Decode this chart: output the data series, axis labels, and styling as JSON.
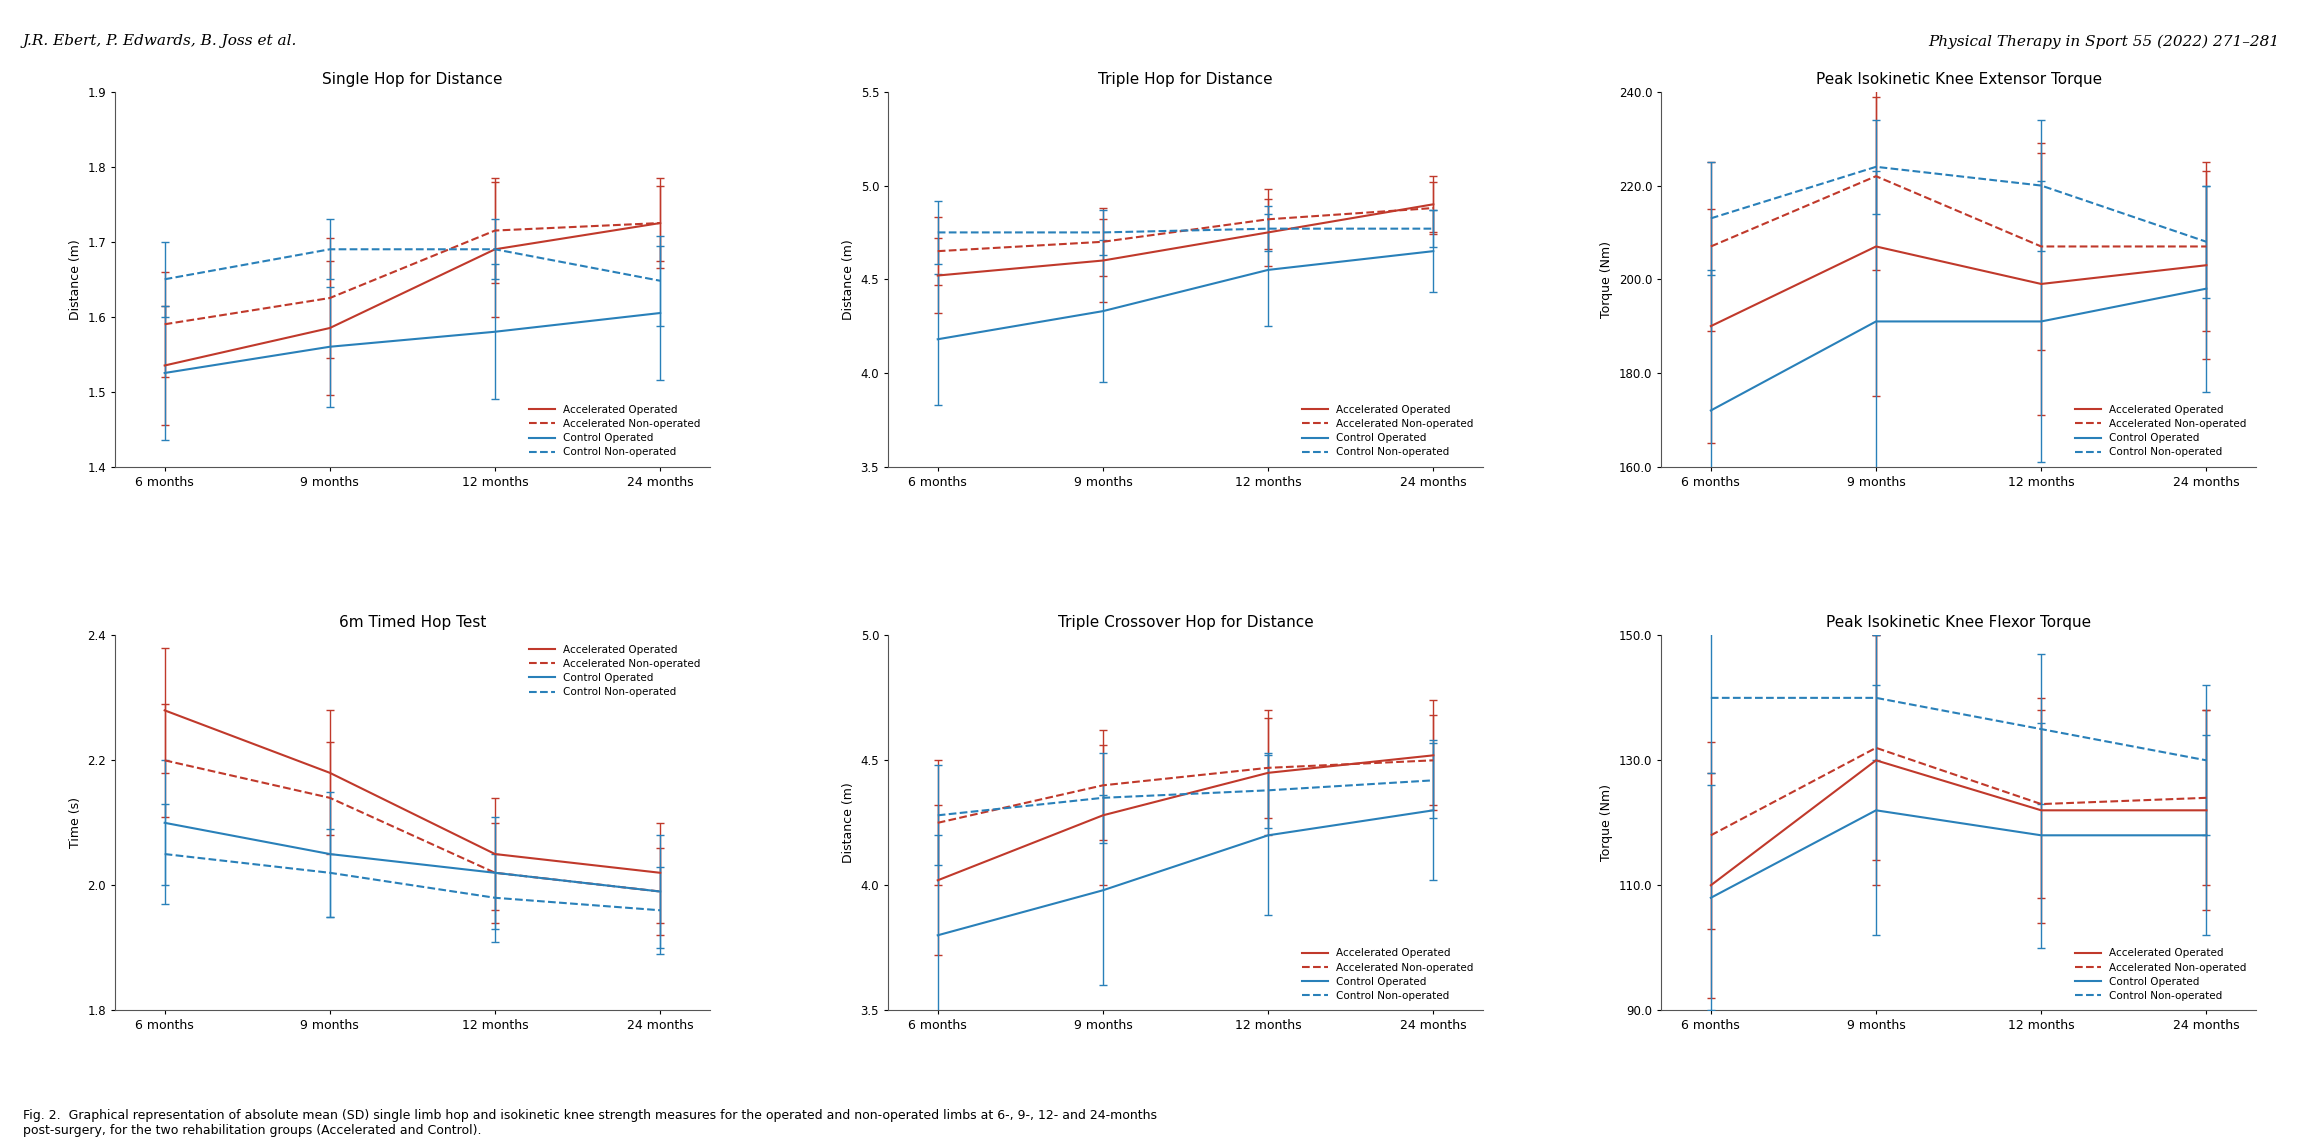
{
  "header_left": "J.R. Ebert, P. Edwards, B. Joss et al.",
  "header_right": "Physical Therapy in Sport 55 (2022) 271–281",
  "caption": "Fig. 2.  Graphical representation of absolute mean (SD) single limb hop and isokinetic knee strength measures for the operated and non-operated limbs at 6-, 9-, 12- and 24-months\npost-surgery, for the two rehabilitation groups (Accelerated and Control).",
  "x_labels": [
    "6 months",
    "9 months",
    "12 months",
    "24 months"
  ],
  "x_positions": [
    0,
    1,
    2,
    3
  ],
  "plots": [
    {
      "title": "Single Hop for Distance",
      "ylabel": "Distance (m)",
      "ylim": [
        1.4,
        1.9
      ],
      "yticks": [
        1.4,
        1.5,
        1.6,
        1.7,
        1.8,
        1.9
      ],
      "legend_loc": "lower right",
      "series": {
        "acc_op": {
          "y": [
            1.535,
            1.585,
            1.69,
            1.725
          ],
          "yerr": [
            0.08,
            0.09,
            0.09,
            0.06
          ],
          "color": "#c0392b",
          "ls": "-"
        },
        "acc_nop": {
          "y": [
            1.59,
            1.625,
            1.715,
            1.725
          ],
          "yerr": [
            0.07,
            0.08,
            0.07,
            0.05
          ],
          "color": "#c0392b",
          "ls": "--"
        },
        "con_op": {
          "y": [
            1.525,
            1.56,
            1.58,
            1.605
          ],
          "yerr": [
            0.09,
            0.08,
            0.09,
            0.09
          ],
          "color": "#2980b9",
          "ls": "-"
        },
        "con_nop": {
          "y": [
            1.65,
            1.69,
            1.69,
            1.648
          ],
          "yerr": [
            0.05,
            0.04,
            0.04,
            0.06
          ],
          "color": "#2980b9",
          "ls": "--"
        }
      }
    },
    {
      "title": "Triple Hop for Distance",
      "ylabel": "Distance (m)",
      "ylim": [
        3.5,
        5.5
      ],
      "yticks": [
        3.5,
        4.0,
        4.5,
        5.0,
        5.5
      ],
      "legend_loc": "lower right",
      "series": {
        "acc_op": {
          "y": [
            4.52,
            4.6,
            4.75,
            4.9
          ],
          "yerr": [
            0.2,
            0.22,
            0.18,
            0.15
          ],
          "color": "#c0392b",
          "ls": "-"
        },
        "acc_nop": {
          "y": [
            4.65,
            4.7,
            4.82,
            4.88
          ],
          "yerr": [
            0.18,
            0.18,
            0.16,
            0.14
          ],
          "color": "#c0392b",
          "ls": "--"
        },
        "con_op": {
          "y": [
            4.18,
            4.33,
            4.55,
            4.65
          ],
          "yerr": [
            0.35,
            0.38,
            0.3,
            0.22
          ],
          "color": "#2980b9",
          "ls": "-"
        },
        "con_nop": {
          "y": [
            4.75,
            4.75,
            4.77,
            4.77
          ],
          "yerr": [
            0.17,
            0.12,
            0.12,
            0.1
          ],
          "color": "#2980b9",
          "ls": "--"
        }
      }
    },
    {
      "title": "Peak Isokinetic Knee Extensor Torque",
      "ylabel": "Torque (Nm)",
      "ylim": [
        160.0,
        240.0
      ],
      "yticks": [
        160.0,
        180.0,
        200.0,
        220.0,
        240.0
      ],
      "legend_loc": "lower right",
      "series": {
        "acc_op": {
          "y": [
            190.0,
            207.0,
            199.0,
            203.0
          ],
          "yerr": [
            25.0,
            32.0,
            28.0,
            20.0
          ],
          "color": "#c0392b",
          "ls": "-"
        },
        "acc_nop": {
          "y": [
            207.0,
            222.0,
            207.0,
            207.0
          ],
          "yerr": [
            18.0,
            20.0,
            22.0,
            18.0
          ],
          "color": "#c0392b",
          "ls": "--"
        },
        "con_op": {
          "y": [
            172.0,
            191.0,
            191.0,
            198.0
          ],
          "yerr": [
            30.0,
            32.0,
            30.0,
            22.0
          ],
          "color": "#2980b9",
          "ls": "-"
        },
        "con_nop": {
          "y": [
            213.0,
            224.0,
            220.0,
            208.0
          ],
          "yerr": [
            12.0,
            10.0,
            14.0,
            12.0
          ],
          "color": "#2980b9",
          "ls": "--"
        }
      }
    },
    {
      "title": "6m Timed Hop Test",
      "ylabel": "Time (s)",
      "ylim": [
        1.8,
        2.4
      ],
      "yticks": [
        1.8,
        2.0,
        2.2,
        2.4
      ],
      "legend_loc": "upper right",
      "series": {
        "acc_op": {
          "y": [
            2.28,
            2.18,
            2.05,
            2.02
          ],
          "yerr": [
            0.1,
            0.1,
            0.09,
            0.08
          ],
          "color": "#c0392b",
          "ls": "-"
        },
        "acc_nop": {
          "y": [
            2.2,
            2.14,
            2.02,
            1.99
          ],
          "yerr": [
            0.09,
            0.09,
            0.08,
            0.07
          ],
          "color": "#c0392b",
          "ls": "--"
        },
        "con_op": {
          "y": [
            2.1,
            2.05,
            2.02,
            1.99
          ],
          "yerr": [
            0.1,
            0.1,
            0.09,
            0.09
          ],
          "color": "#2980b9",
          "ls": "-"
        },
        "con_nop": {
          "y": [
            2.05,
            2.02,
            1.98,
            1.96
          ],
          "yerr": [
            0.08,
            0.07,
            0.07,
            0.07
          ],
          "color": "#2980b9",
          "ls": "--"
        }
      }
    },
    {
      "title": "Triple Crossover Hop for Distance",
      "ylabel": "Distance (m)",
      "ylim": [
        3.5,
        5.0
      ],
      "yticks": [
        3.5,
        4.0,
        4.5,
        5.0
      ],
      "legend_loc": "lower right",
      "series": {
        "acc_op": {
          "y": [
            4.02,
            4.28,
            4.45,
            4.52
          ],
          "yerr": [
            0.3,
            0.28,
            0.25,
            0.22
          ],
          "color": "#c0392b",
          "ls": "-"
        },
        "acc_nop": {
          "y": [
            4.25,
            4.4,
            4.47,
            4.5
          ],
          "yerr": [
            0.25,
            0.22,
            0.2,
            0.18
          ],
          "color": "#c0392b",
          "ls": "--"
        },
        "con_op": {
          "y": [
            3.8,
            3.98,
            4.2,
            4.3
          ],
          "yerr": [
            0.4,
            0.38,
            0.32,
            0.28
          ],
          "color": "#2980b9",
          "ls": "-"
        },
        "con_nop": {
          "y": [
            4.28,
            4.35,
            4.38,
            4.42
          ],
          "yerr": [
            0.2,
            0.18,
            0.15,
            0.15
          ],
          "color": "#2980b9",
          "ls": "--"
        }
      }
    },
    {
      "title": "Peak Isokinetic Knee Flexor Torque",
      "ylabel": "Torque (Nm)",
      "ylim": [
        90.0,
        150.0
      ],
      "yticks": [
        90.0,
        110.0,
        130.0,
        150.0
      ],
      "legend_loc": "lower right",
      "series": {
        "acc_op": {
          "y": [
            110.0,
            130.0,
            122.0,
            122.0
          ],
          "yerr": [
            18.0,
            20.0,
            18.0,
            16.0
          ],
          "color": "#c0392b",
          "ls": "-"
        },
        "acc_nop": {
          "y": [
            118.0,
            132.0,
            123.0,
            124.0
          ],
          "yerr": [
            15.0,
            18.0,
            15.0,
            14.0
          ],
          "color": "#c0392b",
          "ls": "--"
        },
        "con_op": {
          "y": [
            108.0,
            122.0,
            118.0,
            118.0
          ],
          "yerr": [
            18.0,
            20.0,
            18.0,
            16.0
          ],
          "color": "#2980b9",
          "ls": "-"
        },
        "con_nop": {
          "y": [
            140.0,
            140.0,
            135.0,
            130.0
          ],
          "yerr": [
            12.0,
            10.0,
            12.0,
            12.0
          ],
          "color": "#2980b9",
          "ls": "--"
        }
      }
    }
  ],
  "legend_labels": [
    "Accelerated Operated",
    "Accelerated Non-operated",
    "Control Operated",
    "Control Non-operated"
  ],
  "red_color": "#c0392b",
  "blue_color": "#2980b9",
  "bg_color": "#ffffff"
}
